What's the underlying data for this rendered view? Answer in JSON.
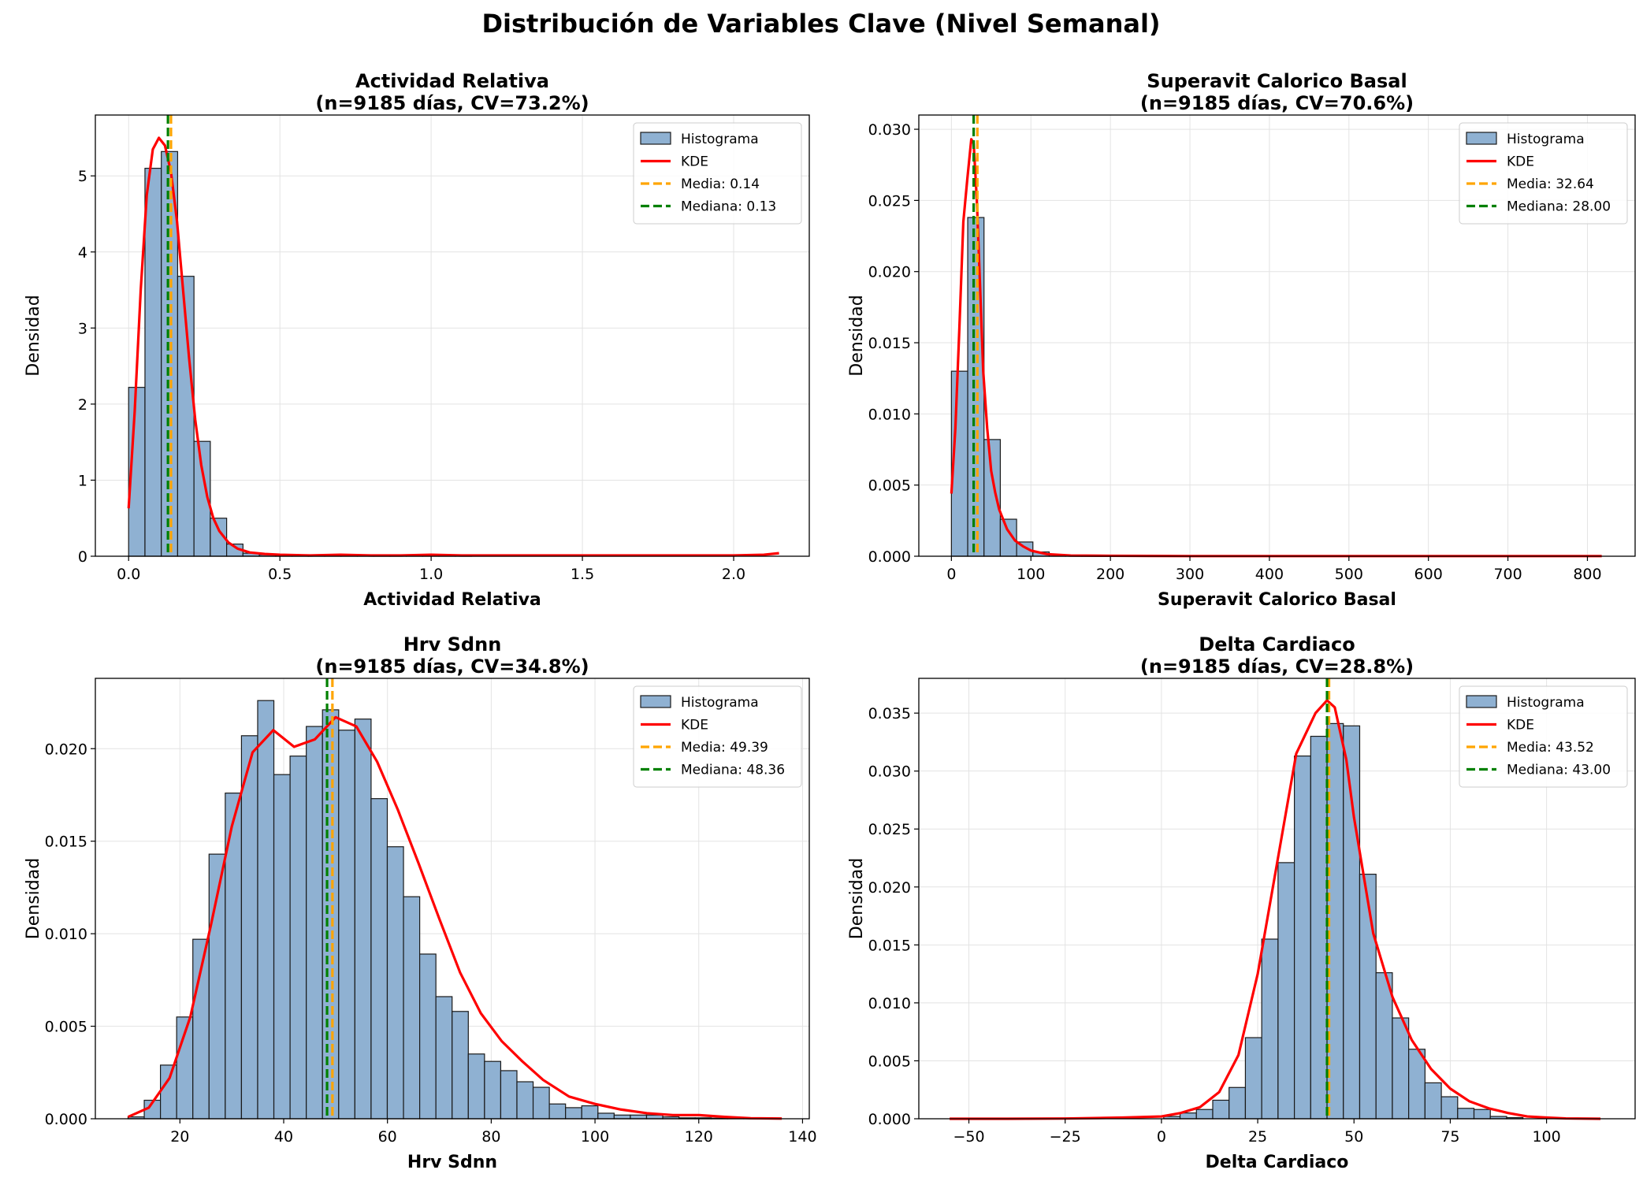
{
  "suptitle": "Distribución de Variables Clave (Nivel Semanal)",
  "colors": {
    "hist_fill": "#8fb1d2",
    "hist_edge": "#1a1a1a",
    "kde": "#ff0000",
    "mean": "#ffa500",
    "median": "#008000",
    "grid": "#e3e3e3"
  },
  "chart_data": [
    {
      "type": "bar",
      "title": "Actividad Relativa",
      "subtitle": "(n=9185 días, CV=73.2%)",
      "xlabel": "Actividad Relativa",
      "ylabel": "Densidad",
      "xlim": [
        -0.11,
        2.25
      ],
      "ylim": [
        0,
        5.8
      ],
      "xticks": [
        0.0,
        0.5,
        1.0,
        1.5,
        2.0
      ],
      "xtick_labels": [
        "0.0",
        "0.5",
        "1.0",
        "1.5",
        "2.0"
      ],
      "yticks": [
        0,
        1,
        2,
        3,
        4,
        5
      ],
      "ytick_labels": [
        "0",
        "1",
        "2",
        "3",
        "4",
        "5"
      ],
      "grid": true,
      "legend_position": "top-right",
      "bins_start": 0.0,
      "bin_width": 0.054,
      "values": [
        2.22,
        5.1,
        5.32,
        3.68,
        1.51,
        0.5,
        0.16,
        0.04,
        0.02,
        0.01,
        0.01,
        0.01,
        0.01,
        0.01,
        0.01,
        0.01,
        0.005,
        0.005,
        0.01,
        0.01,
        0.005
      ],
      "kde_x": [
        0.0,
        0.02,
        0.04,
        0.06,
        0.08,
        0.1,
        0.12,
        0.14,
        0.16,
        0.18,
        0.2,
        0.22,
        0.24,
        0.26,
        0.28,
        0.3,
        0.33,
        0.36,
        0.4,
        0.45,
        0.5,
        0.6,
        0.7,
        0.8,
        0.9,
        1.0,
        1.1,
        1.2,
        1.4,
        1.6,
        1.8,
        2.0,
        2.1,
        2.15
      ],
      "kde_y": [
        0.63,
        1.9,
        3.5,
        4.75,
        5.35,
        5.5,
        5.4,
        5.05,
        4.4,
        3.5,
        2.6,
        1.8,
        1.2,
        0.78,
        0.5,
        0.33,
        0.18,
        0.1,
        0.05,
        0.03,
        0.02,
        0.01,
        0.02,
        0.01,
        0.01,
        0.02,
        0.01,
        0.01,
        0.01,
        0.01,
        0.01,
        0.01,
        0.02,
        0.04
      ],
      "mean": 0.14,
      "median": 0.13,
      "legend": [
        "Histograma",
        "KDE",
        "Media: 0.14",
        "Mediana: 0.13"
      ]
    },
    {
      "type": "bar",
      "title": "Superavit Calorico Basal",
      "subtitle": "(n=9185 días, CV=70.6%)",
      "xlabel": "Superavit Calorico Basal",
      "ylabel": "Densidad",
      "xlim": [
        -41,
        860
      ],
      "ylim": [
        0,
        0.031
      ],
      "xticks": [
        0,
        100,
        200,
        300,
        400,
        500,
        600,
        700,
        800
      ],
      "xtick_labels": [
        "0",
        "100",
        "200",
        "300",
        "400",
        "500",
        "600",
        "700",
        "800"
      ],
      "yticks": [
        0.0,
        0.005,
        0.01,
        0.015,
        0.02,
        0.025,
        0.03
      ],
      "ytick_labels": [
        "0.000",
        "0.005",
        "0.010",
        "0.015",
        "0.020",
        "0.025",
        "0.030"
      ],
      "grid": true,
      "legend_position": "top-right",
      "bins_start": 0,
      "bin_width": 20.5,
      "values": [
        0.013,
        0.0238,
        0.0082,
        0.0026,
        0.001,
        0.0003,
        0.0001,
        5e-05,
        3e-05,
        2e-05
      ],
      "kde_x": [
        0,
        5,
        10,
        15,
        20,
        25,
        28,
        32,
        36,
        40,
        45,
        50,
        55,
        60,
        70,
        80,
        90,
        100,
        120,
        150,
        200,
        250,
        300,
        400,
        500,
        600,
        700,
        818
      ],
      "kde_y": [
        0.0044,
        0.009,
        0.016,
        0.0235,
        0.0265,
        0.0293,
        0.029,
        0.025,
        0.019,
        0.013,
        0.009,
        0.006,
        0.0045,
        0.0033,
        0.0019,
        0.0011,
        0.0007,
        0.0004,
        0.00015,
        5e-05,
        3e-05,
        2e-05,
        1e-05,
        1e-05,
        1e-05,
        1e-05,
        1e-05,
        1e-05
      ],
      "mean": 32.64,
      "median": 28.0,
      "legend": [
        "Histograma",
        "KDE",
        "Media: 32.64",
        "Mediana: 28.00"
      ]
    },
    {
      "type": "bar",
      "title": "Hrv Sdnn",
      "subtitle": "(n=9185 días, CV=34.8%)",
      "xlabel": "Hrv Sdnn",
      "ylabel": "Densidad",
      "xlim": [
        3.7,
        141.3
      ],
      "ylim": [
        0,
        0.0238
      ],
      "xticks": [
        20,
        40,
        60,
        80,
        100,
        120,
        140
      ],
      "xtick_labels": [
        "20",
        "40",
        "60",
        "80",
        "100",
        "120",
        "140"
      ],
      "yticks": [
        0.0,
        0.005,
        0.01,
        0.015,
        0.02
      ],
      "ytick_labels": [
        "0.000",
        "0.005",
        "0.010",
        "0.015",
        "0.020"
      ],
      "grid": true,
      "legend_position": "top-right",
      "bins_start": 10.0,
      "bin_width": 3.123,
      "values": [
        0.0001,
        0.001,
        0.0029,
        0.0055,
        0.0097,
        0.0143,
        0.0176,
        0.0207,
        0.0226,
        0.0186,
        0.0196,
        0.0212,
        0.0221,
        0.021,
        0.0216,
        0.0173,
        0.0147,
        0.012,
        0.0089,
        0.0066,
        0.0058,
        0.0035,
        0.0031,
        0.0026,
        0.002,
        0.0017,
        0.0008,
        0.0006,
        0.0007,
        0.0003,
        0.0002,
        0.0002,
        0.0002,
        0.0001,
        5e-05,
        5e-05,
        3e-05,
        2e-05,
        1e-05
      ],
      "kde_x": [
        10,
        14,
        18,
        22,
        26,
        30,
        34,
        38,
        42,
        46,
        50,
        54,
        58,
        62,
        66,
        70,
        74,
        78,
        82,
        86,
        90,
        95,
        100,
        105,
        110,
        115,
        120,
        125,
        130,
        136
      ],
      "kde_y": [
        0.0001,
        0.0006,
        0.0022,
        0.0055,
        0.0105,
        0.0158,
        0.0198,
        0.021,
        0.0201,
        0.0205,
        0.0217,
        0.0212,
        0.0193,
        0.0167,
        0.0138,
        0.0108,
        0.0079,
        0.0057,
        0.0042,
        0.0031,
        0.0021,
        0.0012,
        0.0008,
        0.0005,
        0.0003,
        0.0002,
        0.0002,
        0.0001,
        3e-05,
        1e-05
      ],
      "mean": 49.39,
      "median": 48.36,
      "legend": [
        "Histograma",
        "KDE",
        "Media: 49.39",
        "Mediana: 48.36"
      ]
    },
    {
      "type": "bar",
      "title": "Delta Cardiaco",
      "subtitle": "(n=9185 días, CV=28.8%)",
      "xlabel": "Delta Cardiaco",
      "ylabel": "Densidad",
      "xlim": [
        -63,
        123
      ],
      "ylim": [
        0,
        0.038
      ],
      "xticks": [
        -50,
        -25,
        0,
        25,
        50,
        75,
        100
      ],
      "xtick_labels": [
        "−50",
        "−25",
        "0",
        "25",
        "50",
        "75",
        "100"
      ],
      "yticks": [
        0.0,
        0.005,
        0.01,
        0.015,
        0.02,
        0.025,
        0.03,
        0.035
      ],
      "ytick_labels": [
        "0.000",
        "0.005",
        "0.010",
        "0.015",
        "0.020",
        "0.025",
        "0.030",
        "0.035"
      ],
      "grid": true,
      "legend_position": "top-right",
      "bins_start": 0.6,
      "bin_width": 4.24,
      "values": [
        0.0002,
        0.0005,
        0.0008,
        0.0016,
        0.0027,
        0.007,
        0.0155,
        0.0221,
        0.0313,
        0.033,
        0.0341,
        0.0339,
        0.0211,
        0.0126,
        0.0087,
        0.006,
        0.0031,
        0.0019,
        0.0009,
        0.0008,
        0.0002,
        0.0001
      ],
      "kde_x": [
        -55,
        -40,
        -25,
        -10,
        0,
        5,
        10,
        15,
        20,
        25,
        30,
        35,
        40,
        43,
        45,
        48,
        50,
        55,
        60,
        65,
        70,
        75,
        80,
        85,
        90,
        95,
        100,
        105,
        114
      ],
      "kde_y": [
        0.0,
        0.0,
        2e-05,
        0.0001,
        0.0002,
        0.0005,
        0.001,
        0.0023,
        0.0055,
        0.0125,
        0.022,
        0.0315,
        0.035,
        0.0361,
        0.0355,
        0.031,
        0.026,
        0.016,
        0.0105,
        0.0068,
        0.0043,
        0.0026,
        0.0015,
        0.0009,
        0.0005,
        0.0002,
        0.0001,
        3e-05,
        0.0
      ],
      "mean": 43.52,
      "median": 43.0,
      "legend": [
        "Histograma",
        "KDE",
        "Media: 43.52",
        "Mediana: 43.00"
      ]
    }
  ]
}
